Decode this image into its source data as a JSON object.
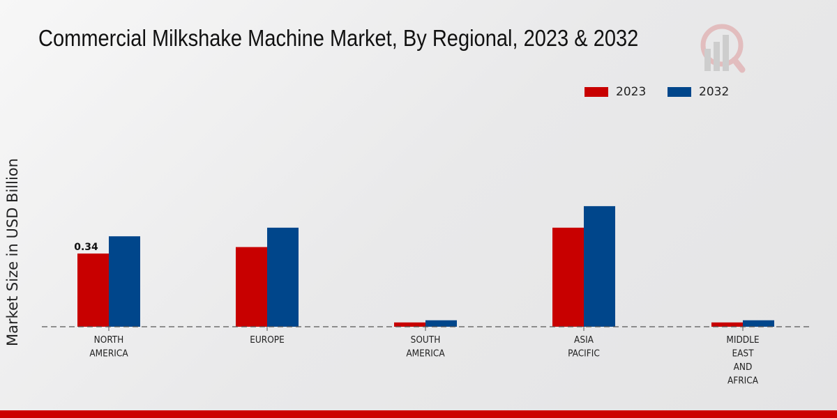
{
  "chart_data": {
    "type": "bar",
    "title": "Commercial Milkshake Machine Market, By Regional, 2023 & 2032",
    "xlabel": "",
    "ylabel": "Market Size in USD Billion",
    "ylim": [
      0,
      0.935
    ],
    "grid": false,
    "legend_position": "top-right",
    "categories": [
      [
        "NORTH",
        "AMERICA"
      ],
      [
        "EUROPE"
      ],
      [
        "SOUTH",
        "AMERICA"
      ],
      [
        "ASIA",
        "PACIFIC"
      ],
      [
        "MIDDLE",
        "EAST",
        "AND",
        "AFRICA"
      ]
    ],
    "series": [
      {
        "name": "2023",
        "color": "#c80000",
        "values": [
          0.34,
          0.37,
          0.02,
          0.46,
          0.02
        ]
      },
      {
        "name": "2032",
        "color": "#00468b",
        "values": [
          0.42,
          0.46,
          0.03,
          0.56,
          0.03
        ]
      }
    ],
    "annotations": [
      {
        "series": 0,
        "category": 0,
        "text": "0.34"
      }
    ]
  },
  "footer_color": "#cc0000"
}
